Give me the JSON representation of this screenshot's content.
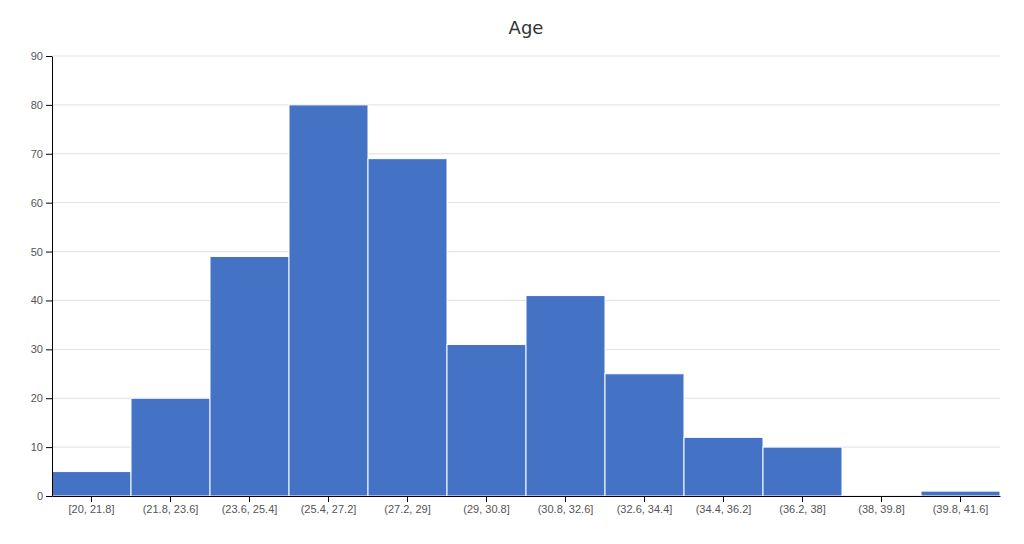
{
  "chart_data": {
    "type": "bar",
    "title": "Age",
    "categories": [
      "[20, 21.8]",
      "(21.8, 23.6]",
      "(23.6, 25.4]",
      "(25.4, 27.2]",
      "(27.2, 29]",
      "(29, 30.8]",
      "(30.8, 32.6]",
      "(32.6, 34.4]",
      "(34.4, 36.2]",
      "(36.2, 38]",
      "(38, 39.8]",
      "(39.8, 41.6]"
    ],
    "values": [
      5,
      20,
      49,
      80,
      69,
      31,
      41,
      25,
      12,
      10,
      0,
      1
    ],
    "color": "#4472C4",
    "ylim": [
      0,
      90
    ],
    "yticks": [
      0,
      10,
      20,
      30,
      40,
      50,
      60,
      70,
      80,
      90
    ],
    "grid": true
  }
}
